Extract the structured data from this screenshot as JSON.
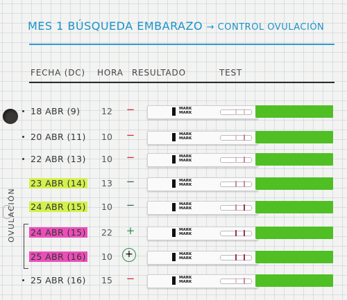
{
  "title": "MES 1 BÚSQUEDA EMBARAZO",
  "subtitle": "→ CONTROL OVULACIÓN",
  "headers": {
    "date": "FECHA (DC)",
    "hour": "HORA",
    "result": "RESULTADO",
    "test": "TEST"
  },
  "side_label": "OVULACIÓN",
  "strip_text": "MARK",
  "strip_text2": "MARK",
  "colors": {
    "title": "#1a93c9",
    "green_highlight": "#d3f14e",
    "pink_highlight": "#ea4fb8",
    "negative": "#d8293a",
    "positive": "#2c8e4b",
    "strip_green": "#4fbf24"
  },
  "rows": [
    {
      "date": "18 ABR (9)",
      "hour": "12",
      "result": "−",
      "result_type": "neg",
      "highlight": "none"
    },
    {
      "date": "20 ABR (11)",
      "hour": "10",
      "result": "−",
      "result_type": "neg",
      "highlight": "none"
    },
    {
      "date": "22 ABR (13)",
      "hour": "10",
      "result": "−",
      "result_type": "neg",
      "highlight": "none"
    },
    {
      "date": "23 ABR (14)",
      "hour": "13",
      "result": "−",
      "result_type": "dark",
      "highlight": "green"
    },
    {
      "date": "24 ABR (15)",
      "hour": "10",
      "result": "−",
      "result_type": "dark",
      "highlight": "green"
    },
    {
      "date": "24 ABR (15)",
      "hour": "22",
      "result": "+",
      "result_type": "pos",
      "highlight": "pink"
    },
    {
      "date": "25 ABR (16)",
      "hour": "10",
      "result": "+",
      "result_type": "circ",
      "highlight": "pink"
    },
    {
      "date": "25 ABR (16)",
      "hour": "15",
      "result": "−",
      "result_type": "neg",
      "highlight": "none"
    }
  ]
}
